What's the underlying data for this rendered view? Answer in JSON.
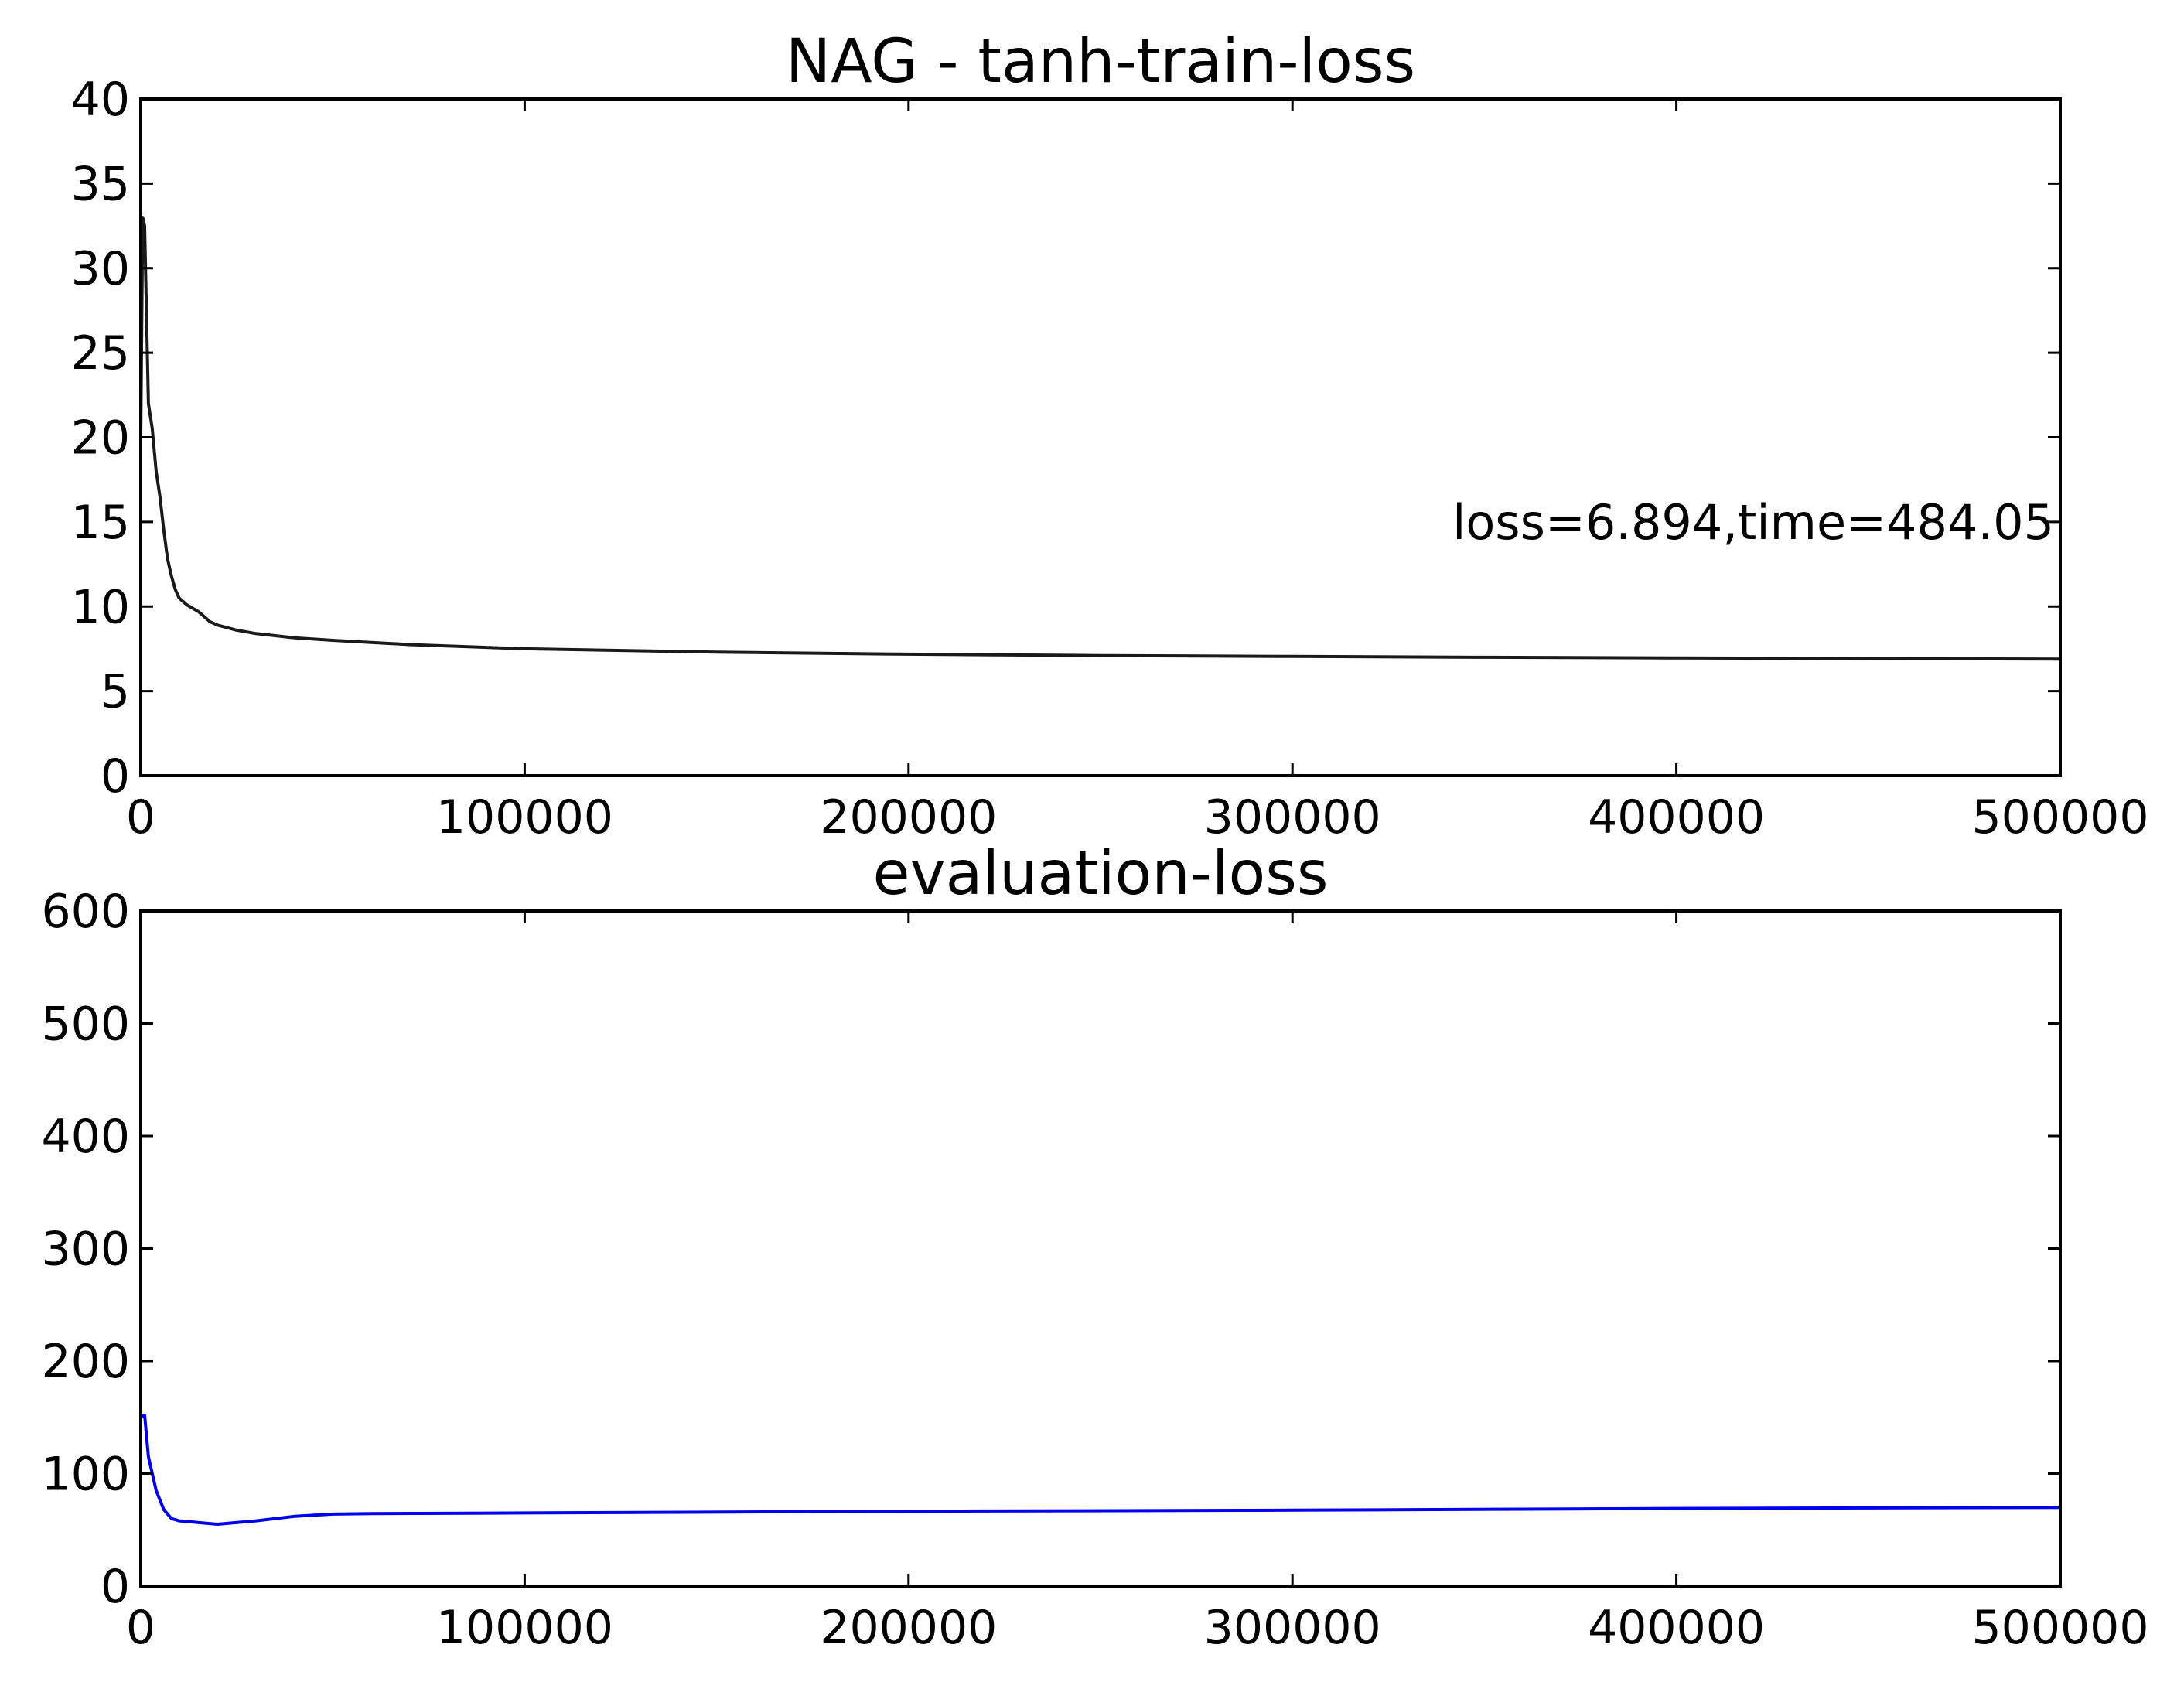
{
  "chart_data": [
    {
      "type": "line",
      "title": "NAG - tanh-train-loss",
      "xlabel": "",
      "ylabel": "",
      "xlim": [
        0,
        500000
      ],
      "ylim": [
        0,
        40
      ],
      "x_ticks": [
        "0",
        "100000",
        "200000",
        "300000",
        "400000",
        "500000"
      ],
      "y_ticks": [
        "0",
        "5",
        "10",
        "15",
        "20",
        "25",
        "30",
        "35",
        "40"
      ],
      "grid": false,
      "annotation": "loss=6.894,time=484.05",
      "series": [
        {
          "color": "#1a1a1a",
          "x": [
            0,
            500,
            1000,
            2000,
            3000,
            4000,
            5000,
            6000,
            7000,
            8000,
            9000,
            10000,
            12000,
            15000,
            18000,
            20000,
            25000,
            30000,
            40000,
            50000,
            70000,
            100000,
            150000,
            200000,
            250000,
            300000,
            350000,
            400000,
            450000,
            500000
          ],
          "y": [
            20,
            33,
            32.5,
            22,
            20.5,
            18,
            16.5,
            14.5,
            12.8,
            11.8,
            11,
            10.5,
            10.1,
            9.7,
            9.1,
            8.9,
            8.6,
            8.4,
            8.15,
            8.0,
            7.75,
            7.5,
            7.3,
            7.18,
            7.1,
            7.05,
            7.0,
            6.96,
            6.92,
            6.894
          ]
        }
      ]
    },
    {
      "type": "line",
      "title": "evaluation-loss",
      "xlabel": "",
      "ylabel": "",
      "xlim": [
        0,
        500000
      ],
      "ylim": [
        0,
        600
      ],
      "x_ticks": [
        "0",
        "100000",
        "200000",
        "300000",
        "400000",
        "500000"
      ],
      "y_ticks": [
        "0",
        "100",
        "200",
        "300",
        "400",
        "500",
        "600"
      ],
      "grid": false,
      "series": [
        {
          "color": "#0000ee",
          "x": [
            0,
            1000,
            2000,
            4000,
            6000,
            8000,
            10000,
            20000,
            30000,
            40000,
            50000,
            60000,
            100000,
            200000,
            300000,
            400000,
            500000
          ],
          "y": [
            150,
            152,
            115,
            85,
            68,
            60,
            58,
            55,
            58,
            62,
            64,
            64.5,
            65,
            66.5,
            67.5,
            69,
            70
          ]
        }
      ]
    }
  ]
}
